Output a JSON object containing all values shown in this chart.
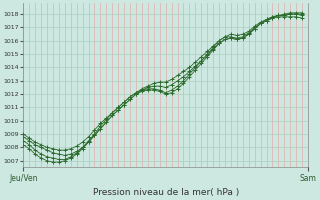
{
  "xlabel": "Pression niveau de la mer( hPa )",
  "ylim": [
    1006.5,
    1018.8
  ],
  "xlim": [
    0,
    48
  ],
  "yticks": [
    1007,
    1008,
    1009,
    1010,
    1011,
    1012,
    1013,
    1014,
    1015,
    1016,
    1017,
    1018
  ],
  "xtick_positions": [
    0,
    48
  ],
  "xtick_labels": [
    "Jeu/Ven",
    "Sam"
  ],
  "bg_color": "#cde8e0",
  "line_color": "#2d6b2d",
  "grid_color_h": "#aacfbf",
  "grid_color_v": "#e8a0a0",
  "line1_y": [
    1008.8,
    1008.5,
    1008.2,
    1008.0,
    1007.8,
    1007.6,
    1007.5,
    1007.4,
    1007.5,
    1007.7,
    1008.0,
    1008.4,
    1008.9,
    1009.4,
    1009.9,
    1010.4,
    1010.8,
    1011.2,
    1011.6,
    1012.0,
    1012.3,
    1012.5,
    1012.6,
    1012.6,
    1012.5,
    1012.7,
    1013.0,
    1013.3,
    1013.7,
    1014.1,
    1014.5,
    1014.9,
    1015.4,
    1015.8,
    1016.1,
    1016.2,
    1016.1,
    1016.2,
    1016.5,
    1016.9,
    1017.3,
    1017.6,
    1017.8,
    1017.9,
    1017.9,
    1018.0,
    1018.0,
    1018.0
  ],
  "line2_y": [
    1008.2,
    1007.9,
    1007.5,
    1007.2,
    1007.0,
    1006.9,
    1006.9,
    1007.0,
    1007.2,
    1007.5,
    1007.9,
    1008.4,
    1008.9,
    1009.4,
    1009.9,
    1010.4,
    1010.8,
    1011.2,
    1011.6,
    1012.0,
    1012.2,
    1012.3,
    1012.3,
    1012.2,
    1012.0,
    1012.1,
    1012.4,
    1012.8,
    1013.3,
    1013.8,
    1014.3,
    1014.8,
    1015.3,
    1015.8,
    1016.1,
    1016.2,
    1016.1,
    1016.2,
    1016.5,
    1016.9,
    1017.3,
    1017.5,
    1017.7,
    1017.8,
    1017.8,
    1017.8,
    1017.8,
    1017.7
  ],
  "line3_y": [
    1009.0,
    1008.7,
    1008.4,
    1008.2,
    1008.0,
    1007.9,
    1007.8,
    1007.8,
    1007.9,
    1008.1,
    1008.4,
    1008.8,
    1009.3,
    1009.8,
    1010.2,
    1010.6,
    1011.0,
    1011.4,
    1011.8,
    1012.1,
    1012.4,
    1012.6,
    1012.8,
    1012.9,
    1012.9,
    1013.1,
    1013.4,
    1013.7,
    1014.0,
    1014.4,
    1014.8,
    1015.2,
    1015.6,
    1016.0,
    1016.3,
    1016.5,
    1016.4,
    1016.5,
    1016.7,
    1017.1,
    1017.4,
    1017.6,
    1017.8,
    1017.9,
    1018.0,
    1018.1,
    1018.1,
    1018.1
  ],
  "line4_y": [
    1008.5,
    1008.2,
    1007.8,
    1007.5,
    1007.3,
    1007.2,
    1007.1,
    1007.1,
    1007.3,
    1007.6,
    1008.0,
    1008.5,
    1009.0,
    1009.6,
    1010.1,
    1010.6,
    1011.0,
    1011.4,
    1011.8,
    1012.1,
    1012.3,
    1012.4,
    1012.4,
    1012.3,
    1012.1,
    1012.3,
    1012.6,
    1013.0,
    1013.5,
    1014.0,
    1014.5,
    1015.0,
    1015.5,
    1016.0,
    1016.3,
    1016.3,
    1016.2,
    1016.3,
    1016.6,
    1017.0,
    1017.3,
    1017.5,
    1017.7,
    1017.9,
    1017.9,
    1018.0,
    1018.0,
    1017.9
  ]
}
